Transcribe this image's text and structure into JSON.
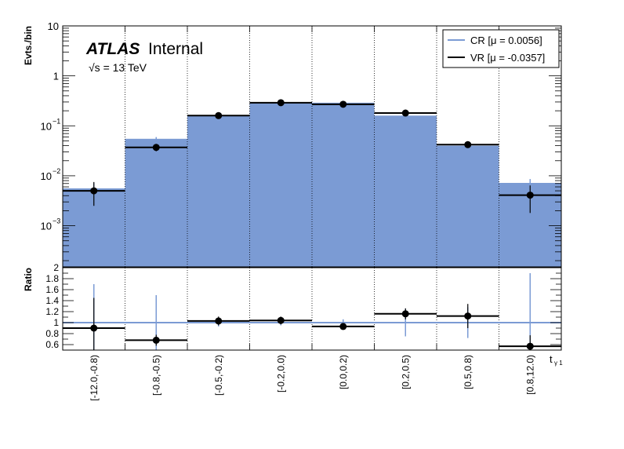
{
  "chart_data": [
    {
      "type": "histogram",
      "panel": "main",
      "ylabel": "Evts./bin",
      "yscale": "log",
      "ylim": [
        0.00015,
        10
      ],
      "yticks": [
        {
          "v": 10,
          "base": "10",
          "exp": ""
        },
        {
          "v": 1,
          "base": "1",
          "exp": ""
        },
        {
          "v": 0.1,
          "base": "10",
          "exp": "−1"
        },
        {
          "v": 0.01,
          "base": "10",
          "exp": "−2"
        },
        {
          "v": 0.001,
          "base": "10",
          "exp": "−3"
        }
      ],
      "atlas_label": "ATLAS",
      "internal_label": "Internal",
      "energy_label": "√s = 13 TeV",
      "categories": [
        "[-12.0,-0.8)",
        "[-0.8,-0.5)",
        "[-0.5,-0.2)",
        "[-0.2,0.0)",
        "[0.0,0.2)",
        "[0.2,0.5)",
        "[0.5,0.8)",
        "[0.8,12.0)"
      ],
      "series": [
        {
          "name": "CR [μ = 0.0056]",
          "style": "filled",
          "color": "#7b9bd4",
          "values": [
            0.0056,
            0.055,
            0.16,
            0.29,
            0.29,
            0.16,
            0.04,
            0.0072
          ],
          "errors": [
            0.0015,
            0.0045,
            0.01,
            0.015,
            0.015,
            0.01,
            0.003,
            0.0014
          ]
        },
        {
          "name": "VR [μ = -0.0357]",
          "style": "line-points",
          "color": "#000000",
          "values": [
            0.005,
            0.037,
            0.16,
            0.29,
            0.27,
            0.18,
            0.042,
            0.0041
          ],
          "errors_low": [
            0.0025,
            0.006,
            0.015,
            0.02,
            0.02,
            0.015,
            0.004,
            0.0023
          ],
          "errors_high": [
            0.0025,
            0.006,
            0.015,
            0.02,
            0.02,
            0.015,
            0.004,
            0.0023
          ]
        }
      ]
    },
    {
      "type": "ratio",
      "panel": "ratio",
      "ylabel": "Ratio",
      "ylim": [
        0.5,
        2.0
      ],
      "yticks": [
        "0.6",
        "0.8",
        "1",
        "1.2",
        "1.4",
        "1.6",
        "1.8",
        "2"
      ],
      "xlabel_main": "t",
      "xlabel_sub": "γ 1",
      "reference": 1.0,
      "reference_color": "#7b9bd4",
      "values": [
        0.9,
        0.68,
        1.03,
        1.04,
        0.93,
        1.16,
        1.12,
        0.57
      ],
      "err_low": [
        0.55,
        0.1,
        0.08,
        0.07,
        0.06,
        0.1,
        0.22,
        0.2
      ],
      "err_high": [
        0.55,
        0.1,
        0.08,
        0.07,
        0.06,
        0.1,
        0.22,
        0.2
      ],
      "ref_err": [
        0.7,
        0.5,
        0.07,
        0.05,
        0.06,
        0.25,
        0.28,
        0.9
      ]
    }
  ]
}
